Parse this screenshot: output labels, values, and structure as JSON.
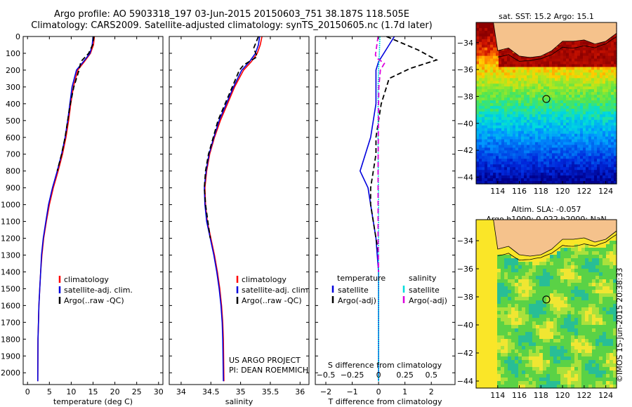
{
  "header": {
    "line1": "Argo profile: AO 5903318_197 03-Jun-2015 20150603_751 38.187S 118.505E",
    "line2": "Climatology: CARS2009. Satellite-adjusted climatology: synTS_20150605.nc (1.7d later)"
  },
  "colors": {
    "climatology": "#ff0000",
    "satellite": "#0000dd",
    "argo": "#000000",
    "salinity_satellite": "#00dddd",
    "salinity_argo": "#dd00dd",
    "land": "#f5c28c"
  },
  "chart_data": [
    {
      "type": "line",
      "panel": "temperature",
      "xlabel": "temperature (deg C)",
      "xlim": [
        -1,
        31
      ],
      "xticks": [
        0,
        5,
        10,
        15,
        20,
        25,
        30
      ],
      "ylim": [
        0,
        2070
      ],
      "yticks": [
        0,
        100,
        200,
        300,
        400,
        500,
        600,
        700,
        800,
        900,
        1000,
        1100,
        1200,
        1300,
        1400,
        1500,
        1600,
        1700,
        1800,
        1900,
        2000
      ],
      "yreversed": true,
      "legend": {
        "location": "lower-center",
        "entries": [
          "climatology",
          "satellite-adj. clim.",
          "Argo(..raw -QC)"
        ]
      },
      "series": [
        {
          "name": "climatology",
          "color": "red",
          "x": [
            15.3,
            15.1,
            14.4,
            13.0,
            11.5,
            10.5,
            9.9,
            9.4,
            8.8,
            8.0,
            7.0,
            5.9,
            5.0,
            4.3,
            3.7,
            3.3,
            3.0,
            2.8,
            2.6,
            2.5,
            2.4,
            2.35
          ],
          "y": [
            0,
            50,
            100,
            150,
            200,
            300,
            400,
            500,
            600,
            700,
            800,
            900,
            1000,
            1100,
            1200,
            1300,
            1400,
            1500,
            1600,
            1700,
            1800,
            2050
          ]
        },
        {
          "name": "satellite-adj. clim.",
          "color": "blue",
          "x": [
            15.0,
            14.8,
            14.3,
            12.8,
            11.2,
            10.2,
            9.7,
            9.2,
            8.6,
            7.8,
            6.8,
            5.7,
            4.8,
            4.2,
            3.6,
            3.2,
            3.0,
            2.8,
            2.6,
            2.5,
            2.4,
            2.35
          ],
          "y": [
            0,
            50,
            100,
            150,
            200,
            300,
            400,
            500,
            600,
            700,
            800,
            900,
            1000,
            1100,
            1200,
            1300,
            1400,
            1500,
            1600,
            1700,
            1800,
            2050
          ]
        },
        {
          "name": "Argo(..raw -QC)",
          "color": "black",
          "x": [
            15.2,
            14.9,
            14.0,
            12.2,
            11.8,
            10.6,
            9.8,
            9.2,
            8.6,
            7.8,
            6.8
          ],
          "y": [
            0,
            50,
            100,
            150,
            200,
            300,
            400,
            500,
            600,
            700,
            800
          ]
        }
      ]
    },
    {
      "type": "line",
      "panel": "salinity",
      "xlabel": "salinity",
      "xlim": [
        33.8,
        36.15
      ],
      "xticks": [
        34,
        34.5,
        35,
        35.5,
        36
      ],
      "ylim": [
        0,
        2070
      ],
      "yreversed": true,
      "legend": {
        "location": "lower-center",
        "entries": [
          "climatology",
          "satellite-adj. clim.",
          "Argo(..raw -QC)"
        ]
      },
      "annotation": [
        "US ARGO PROJECT",
        "PI: DEAN ROEMMICH"
      ],
      "series": [
        {
          "name": "climatology",
          "color": "red",
          "x": [
            35.36,
            35.33,
            35.28,
            35.18,
            35.05,
            34.9,
            34.78,
            34.66,
            34.56,
            34.48,
            34.43,
            34.4,
            34.41,
            34.44,
            34.5,
            34.56,
            34.61,
            34.65,
            34.68,
            34.7,
            34.71,
            34.72
          ],
          "y": [
            0,
            50,
            100,
            150,
            200,
            300,
            400,
            500,
            600,
            700,
            800,
            900,
            1000,
            1100,
            1200,
            1300,
            1400,
            1500,
            1600,
            1700,
            1800,
            2050
          ]
        },
        {
          "name": "satellite-adj. clim.",
          "color": "blue",
          "x": [
            35.32,
            35.3,
            35.25,
            35.15,
            35.02,
            34.88,
            34.76,
            34.64,
            34.55,
            34.47,
            34.42,
            34.39,
            34.4,
            34.43,
            34.49,
            34.55,
            34.6,
            34.64,
            34.67,
            34.69,
            34.7,
            34.71
          ],
          "y": [
            0,
            50,
            100,
            150,
            200,
            300,
            400,
            500,
            600,
            700,
            800,
            900,
            1000,
            1100,
            1200,
            1300,
            1400,
            1500,
            1600,
            1700,
            1800,
            2050
          ]
        },
        {
          "name": "Argo(..raw -QC)",
          "color": "black",
          "x": [
            35.3,
            35.22,
            35.28,
            35.05,
            34.98,
            34.86,
            34.74,
            34.62,
            34.54,
            34.46,
            34.41,
            34.39,
            34.41,
            34.45,
            34.49
          ],
          "y": [
            0,
            70,
            120,
            170,
            200,
            300,
            400,
            500,
            600,
            700,
            800,
            900,
            1000,
            1100,
            1200
          ]
        }
      ]
    },
    {
      "type": "line",
      "panel": "difference",
      "xlabel": "T difference from climatology",
      "xlim": [
        -2.4,
        2.9
      ],
      "xticks": [
        -2,
        -1,
        0,
        1,
        2
      ],
      "top_label": "S difference from climatology",
      "top_ticks": [
        -0.5,
        -0.25,
        0,
        0.25,
        0.5
      ],
      "ylim": [
        0,
        2070
      ],
      "yreversed": true,
      "legend": {
        "location": "lower-center",
        "temperature_title": "temperature",
        "salinity_title": "salinity",
        "temperature_entries": [
          "satellite",
          "Argo(-adj)"
        ],
        "salinity_entries": [
          "satellite",
          "Argo(-adj)"
        ]
      },
      "series": [
        {
          "name": "temperature satellite",
          "color": "blue",
          "x": [
            0.6,
            0.4,
            0.2,
            0.0,
            -0.1,
            -0.1,
            -0.1,
            -0.2,
            -0.3,
            -0.5,
            -0.7,
            -0.4,
            -0.3,
            -0.2,
            -0.1,
            -0.05,
            0.0,
            0.0,
            0.0,
            0.0
          ],
          "y": [
            0,
            50,
            100,
            150,
            200,
            300,
            400,
            500,
            600,
            700,
            800,
            900,
            1000,
            1100,
            1200,
            1300,
            1400,
            1600,
            1800,
            2050
          ]
        },
        {
          "name": "temperature Argo(-adj)",
          "color": "black",
          "x": [
            0.3,
            1.5,
            2.2,
            1.2,
            0.4,
            0.3,
            0.1,
            0.0,
            -0.1,
            -0.1,
            -0.2,
            -0.3,
            -0.3,
            -0.2,
            -0.1,
            0.0
          ],
          "y": [
            0,
            80,
            140,
            190,
            250,
            300,
            400,
            500,
            600,
            700,
            800,
            900,
            1000,
            1100,
            1200,
            1300
          ]
        },
        {
          "name": "salinity satellite",
          "color": "cyan",
          "x": [
            0.05,
            0.03,
            0.0,
            -0.02,
            -0.02,
            -0.02,
            -0.01,
            0.0,
            0.0,
            0.0,
            0.0
          ],
          "y": [
            0,
            100,
            200,
            300,
            400,
            600,
            800,
            1000,
            1400,
            1800,
            2050
          ]
        },
        {
          "name": "salinity Argo(-adj)",
          "color": "magenta",
          "x": [
            -0.02,
            -0.12,
            -0.06,
            0.22,
            0.07,
            0.01,
            0.0,
            -0.02,
            -0.02,
            0.0
          ],
          "y": [
            0,
            110,
            130,
            160,
            200,
            300,
            400,
            800,
            1200,
            1400
          ]
        }
      ]
    },
    {
      "type": "heatmap",
      "panel": "map-sst",
      "title": "sat. SST: 15.2 Argo: 15.1",
      "xlim": [
        112,
        125
      ],
      "ylim": [
        -44.5,
        -32.5
      ],
      "xticks": [
        114,
        116,
        118,
        120,
        122,
        124
      ],
      "yticks": [
        -34,
        -36,
        -38,
        -40,
        -42,
        -44
      ],
      "marker": {
        "lon": 118.5,
        "lat": -38.19
      }
    },
    {
      "type": "heatmap",
      "panel": "map-sla",
      "title": [
        "Altim. SLA: -0.057",
        "Argo h1000: 0.022 h2000: NaN"
      ],
      "xlim": [
        112,
        125
      ],
      "ylim": [
        -44.5,
        -32.5
      ],
      "xticks": [
        114,
        116,
        118,
        120,
        122,
        124
      ],
      "yticks": [
        -34,
        -36,
        -38,
        -40,
        -42,
        -44
      ],
      "marker": {
        "lon": 118.5,
        "lat": -38.19
      }
    }
  ],
  "credit": "©IMOS 15-Jun-2015 20:38:33"
}
